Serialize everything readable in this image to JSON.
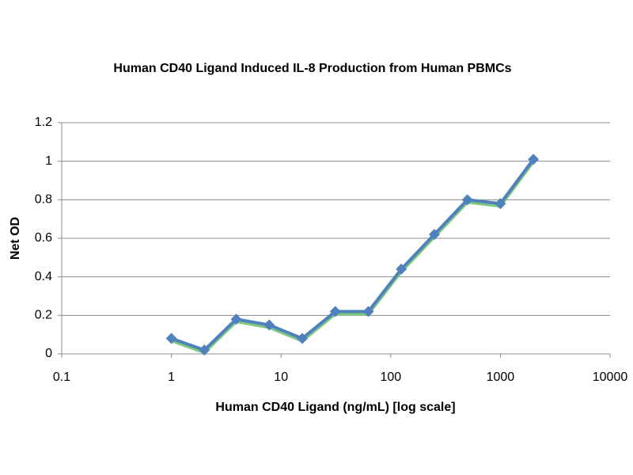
{
  "chart_data": {
    "type": "line",
    "title": "Human CD40 Ligand Induced IL-8 Production from Human PBMCs",
    "x_label": "Human CD40 Ligand (ng/mL) [log scale]",
    "y_label": "Net OD",
    "x": [
      1,
      2,
      3.9,
      7.8,
      15.6,
      31.25,
      62.5,
      125,
      250,
      500,
      1000,
      2000
    ],
    "values": [
      0.08,
      0.02,
      0.18,
      0.15,
      0.08,
      0.22,
      0.22,
      0.44,
      0.62,
      0.8,
      0.78,
      1.01
    ],
    "color": "#4f81bd",
    "x_log": true,
    "xlim": [
      0.1,
      10000
    ],
    "xticks": [
      0.1,
      1,
      10,
      100,
      1000,
      10000
    ],
    "ylim": [
      0,
      1.2
    ],
    "yticks": [
      0,
      0.2,
      0.4,
      0.6,
      0.8,
      1,
      1.2
    ],
    "grid": true
  }
}
